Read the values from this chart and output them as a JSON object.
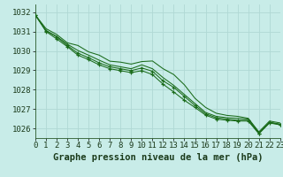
{
  "bg_color": "#c8ece8",
  "grid_color": "#b0d8d4",
  "line_color": "#1a6b1a",
  "xlabel": "Graphe pression niveau de la mer (hPa)",
  "xlabel_fontsize": 7.5,
  "ylim": [
    1025.5,
    1032.4
  ],
  "xlim": [
    0,
    23
  ],
  "yticks": [
    1026,
    1027,
    1028,
    1029,
    1030,
    1031,
    1032
  ],
  "xticks": [
    0,
    1,
    2,
    3,
    4,
    5,
    6,
    7,
    8,
    9,
    10,
    11,
    12,
    13,
    14,
    15,
    16,
    17,
    18,
    19,
    20,
    21,
    22,
    23
  ],
  "lines": [
    [
      1031.85,
      1031.15,
      1030.85,
      1030.42,
      1030.28,
      1029.95,
      1029.78,
      1029.47,
      1029.42,
      1029.32,
      1029.45,
      1029.48,
      1029.08,
      1028.78,
      1028.25,
      1027.55,
      1027.08,
      1026.78,
      1026.67,
      1026.62,
      1026.52,
      1025.82,
      1026.38,
      1026.28
    ],
    [
      1031.85,
      1031.05,
      1030.75,
      1030.35,
      1030.02,
      1029.78,
      1029.52,
      1029.28,
      1029.18,
      1029.08,
      1029.28,
      1029.08,
      1028.62,
      1028.22,
      1027.75,
      1027.28,
      1026.82,
      1026.62,
      1026.55,
      1026.52,
      1026.48,
      1025.78,
      1026.32,
      1026.22
    ],
    [
      1031.85,
      1031.05,
      1030.72,
      1030.28,
      1029.88,
      1029.65,
      1029.38,
      1029.18,
      1029.08,
      1028.98,
      1029.12,
      1028.95,
      1028.45,
      1028.12,
      1027.65,
      1027.18,
      1026.75,
      1026.55,
      1026.48,
      1026.42,
      1026.42,
      1025.75,
      1026.3,
      1026.2
    ],
    [
      1031.85,
      1031.0,
      1030.62,
      1030.22,
      1029.78,
      1029.55,
      1029.28,
      1029.08,
      1028.98,
      1028.88,
      1028.98,
      1028.78,
      1028.28,
      1027.88,
      1027.45,
      1027.08,
      1026.68,
      1026.48,
      1026.42,
      1026.38,
      1026.38,
      1025.72,
      1026.28,
      1026.18
    ]
  ],
  "tick_fontsize": 6.5
}
